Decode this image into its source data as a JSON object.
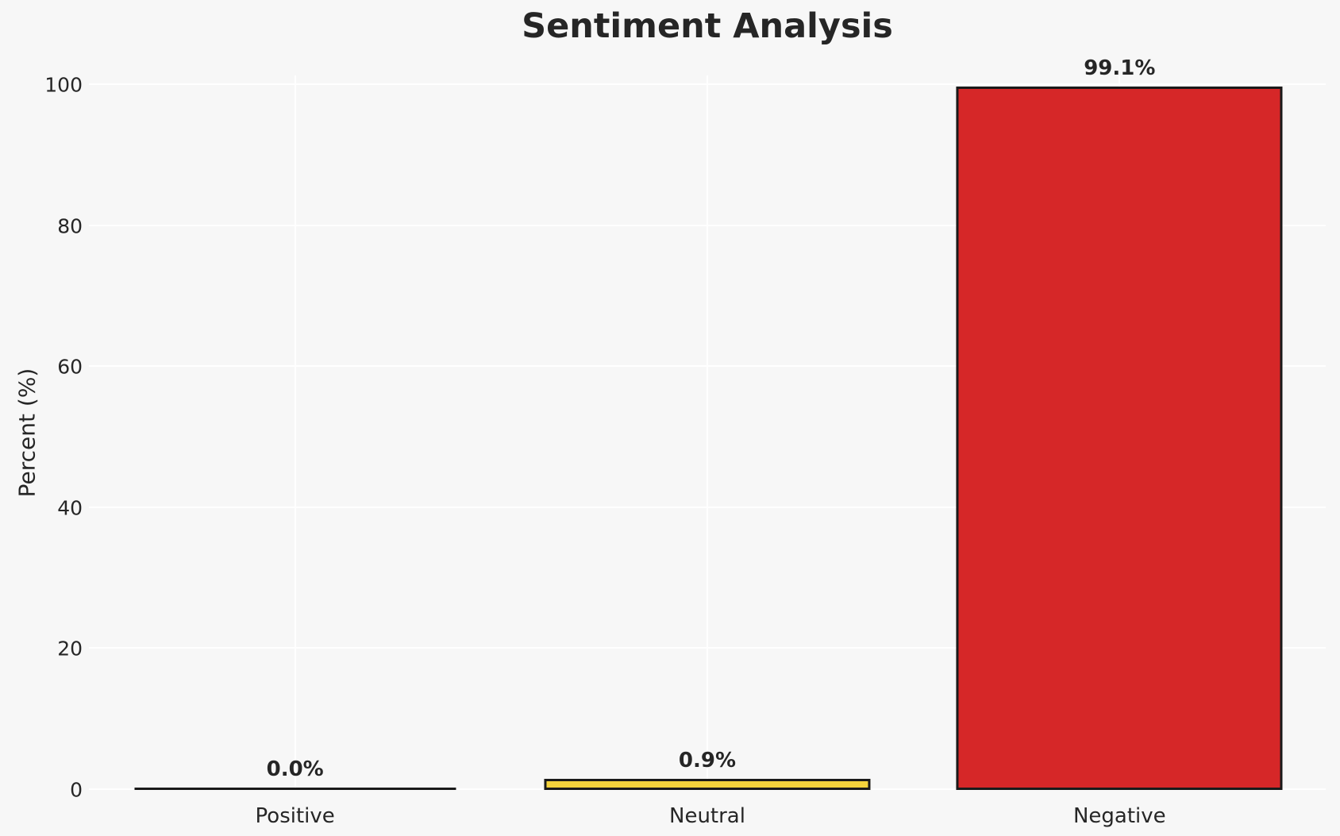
{
  "chart_data": {
    "type": "bar",
    "title": "Sentiment Analysis",
    "xlabel": "",
    "ylabel": "Percent (%)",
    "categories": [
      "Positive",
      "Neutral",
      "Negative"
    ],
    "values": [
      0.0,
      0.9,
      99.1
    ],
    "value_labels": [
      "0.0%",
      "0.9%",
      "99.1%"
    ],
    "bar_colors": [
      null,
      "#f5d33c",
      "#d62728"
    ],
    "bar_edge_color": "#1a1a1a",
    "ylim": [
      0,
      100
    ],
    "yticks": [
      0,
      20,
      40,
      60,
      80,
      100
    ],
    "grid": true,
    "grid_color": "#ffffff",
    "background_color": "#f7f7f7",
    "text_color": "#262626",
    "legend": null
  }
}
